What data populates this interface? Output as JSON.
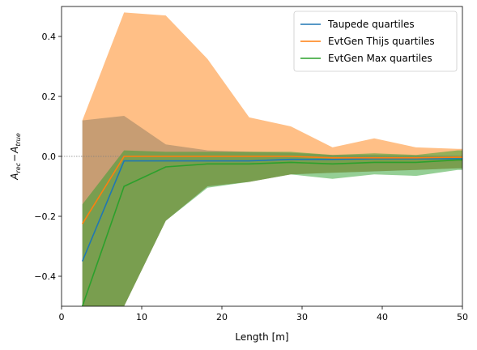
{
  "chart_data": {
    "type": "area",
    "xlabel": "Length [m]",
    "ylabel": "A_rec − A_true",
    "ylabel_main": "A",
    "ylabel_sub1": "rec",
    "ylabel_minus": "−",
    "ylabel_sub2": "true",
    "xlim": [
      0,
      50
    ],
    "ylim": [
      -0.5,
      0.5
    ],
    "xticks": [
      0,
      10,
      20,
      30,
      40,
      50
    ],
    "yticks": [
      -0.4,
      -0.2,
      0.0,
      0.2,
      0.4
    ],
    "xtick_labels": [
      "0",
      "10",
      "20",
      "30",
      "40",
      "50"
    ],
    "ytick_labels": [
      "−0.4",
      "−0.2",
      "0.0",
      "0.2",
      "0.4"
    ],
    "grid": false,
    "legend_position": "top-right",
    "reference_line_y": 0,
    "x": [
      2.6,
      7.8,
      13.0,
      18.2,
      23.4,
      28.6,
      33.8,
      39.0,
      44.2,
      49.4,
      50
    ],
    "series": [
      {
        "name": "Taupede quartiles",
        "color": "#1f77b4",
        "median": [
          -0.35,
          -0.015,
          -0.015,
          -0.015,
          -0.015,
          -0.01,
          -0.01,
          -0.008,
          -0.008,
          -0.008,
          -0.008
        ],
        "lower": [
          -0.5,
          -0.5,
          -0.215,
          -0.1,
          -0.085,
          -0.06,
          -0.055,
          -0.05,
          -0.045,
          -0.04,
          -0.04
        ],
        "upper": [
          0.12,
          0.135,
          0.04,
          0.02,
          0.015,
          0.012,
          0.005,
          0.005,
          0.003,
          0.002,
          0.002
        ]
      },
      {
        "name": "EvtGen Thijs quartiles",
        "color": "#ff7f0e",
        "median": [
          -0.225,
          0.0,
          0.0,
          0.0,
          0.0,
          0.0,
          -0.005,
          -0.005,
          -0.005,
          -0.003,
          -0.003
        ],
        "lower": [
          -0.5,
          -0.5,
          -0.215,
          -0.1,
          -0.085,
          -0.06,
          -0.055,
          -0.05,
          -0.045,
          -0.04,
          -0.04
        ],
        "upper": [
          0.12,
          0.48,
          0.47,
          0.325,
          0.13,
          0.1,
          0.03,
          0.06,
          0.03,
          0.025,
          0.025
        ]
      },
      {
        "name": "EvtGen Max quartiles",
        "color": "#2ca02c",
        "median": [
          -0.5,
          -0.1,
          -0.035,
          -0.025,
          -0.025,
          -0.02,
          -0.025,
          -0.02,
          -0.02,
          -0.012,
          -0.012
        ],
        "lower": [
          -0.5,
          -0.5,
          -0.215,
          -0.105,
          -0.085,
          -0.06,
          -0.075,
          -0.06,
          -0.065,
          -0.045,
          -0.045
        ],
        "upper": [
          -0.16,
          0.02,
          0.015,
          0.015,
          0.015,
          0.015,
          0.005,
          0.01,
          0.005,
          0.02,
          0.02
        ]
      }
    ]
  }
}
